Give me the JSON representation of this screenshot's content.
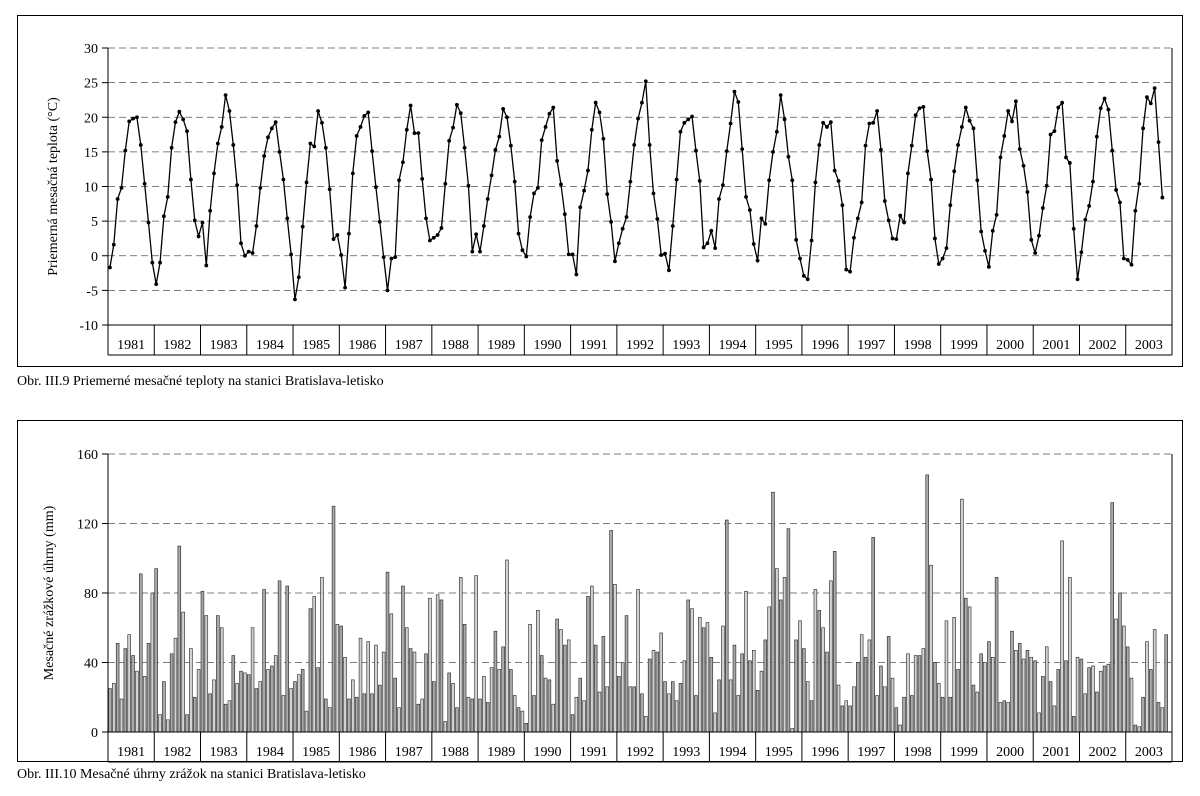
{
  "chart_data": [
    {
      "type": "line",
      "ylabel": "Priemerná mesačná teplota (°C)",
      "ylim": [
        -10,
        30
      ],
      "yticks": [
        -10,
        -5,
        0,
        5,
        10,
        15,
        20,
        25,
        30
      ],
      "grid": "horizontal dashed",
      "years": [
        "1981",
        "1982",
        "1983",
        "1984",
        "1985",
        "1986",
        "1987",
        "1988",
        "1989",
        "1990",
        "1991",
        "1992",
        "1993",
        "1994",
        "1995",
        "1996",
        "1997",
        "1998",
        "1999",
        "2000",
        "2001",
        "2002",
        "2003"
      ],
      "series": [
        {
          "values": [
            -1.7,
            1.6,
            8.2,
            9.8,
            15.2,
            19.4,
            19.8,
            20.0,
            16.0,
            10.4,
            4.8,
            -1.0,
            -4.1,
            -1.0,
            5.7,
            8.5,
            15.6,
            19.3,
            20.8,
            19.7,
            18.0,
            11.0,
            5.1,
            2.8,
            4.8,
            -1.4,
            6.5,
            11.9,
            16.2,
            18.6,
            23.2,
            20.9,
            16.0,
            10.2,
            1.8,
            0.0,
            0.6,
            0.4,
            4.3,
            9.8,
            14.4,
            17.1,
            18.4,
            19.3,
            15.0,
            11.0,
            5.4,
            0.2,
            -6.3,
            -3.1,
            4.2,
            10.6,
            16.2,
            15.8,
            20.9,
            19.2,
            15.6,
            9.6,
            2.4,
            3.0,
            0.1,
            -4.6,
            3.2,
            11.9,
            17.3,
            18.6,
            20.2,
            20.7,
            15.1,
            9.9,
            4.9,
            -0.2,
            -5.0,
            -0.4,
            -0.2,
            10.9,
            13.5,
            18.2,
            21.7,
            17.7,
            17.7,
            11.1,
            5.4,
            2.2,
            2.6,
            3.0,
            4.0,
            10.4,
            16.6,
            18.5,
            21.8,
            20.6,
            15.6,
            10.1,
            0.6,
            3.1,
            0.6,
            4.3,
            8.2,
            11.6,
            15.3,
            17.2,
            21.2,
            20.0,
            15.9,
            10.7,
            3.2,
            0.8,
            -0.1,
            5.6,
            9.0,
            9.8,
            16.7,
            18.6,
            20.5,
            21.4,
            13.7,
            10.3,
            6.0,
            0.2,
            0.2,
            -2.7,
            7.0,
            9.4,
            12.3,
            18.2,
            22.1,
            20.7,
            16.9,
            8.9,
            4.9,
            -0.8,
            1.8,
            3.9,
            5.6,
            10.7,
            16.0,
            19.8,
            22.1,
            25.2,
            16.0,
            9.0,
            5.3,
            0.1,
            0.3,
            -2.1,
            4.3,
            11.0,
            17.9,
            19.2,
            19.7,
            20.1,
            15.2,
            10.8,
            1.2,
            1.8,
            3.6,
            1.1,
            8.2,
            10.2,
            15.1,
            19.1,
            23.7,
            22.2,
            15.4,
            8.5,
            6.6,
            1.7,
            -0.7,
            5.4,
            4.6,
            10.9,
            15.0,
            17.9,
            23.2,
            19.7,
            14.3,
            10.9,
            2.3,
            -0.4,
            -2.9,
            -3.4,
            2.2,
            10.6,
            16.0,
            19.2,
            18.6,
            19.3,
            12.3,
            10.8,
            7.3,
            -2.0,
            -2.3,
            2.6,
            5.4,
            7.7,
            15.9,
            19.1,
            19.2,
            20.9,
            15.3,
            7.9,
            5.1,
            2.5,
            2.4,
            5.8,
            4.8,
            11.9,
            15.9,
            20.3,
            21.3,
            21.5,
            15.1,
            11.0,
            2.5,
            -1.2,
            -0.4,
            1.1,
            7.3,
            12.2,
            16.0,
            18.6,
            21.4,
            19.5,
            18.4,
            10.9,
            3.5,
            0.7,
            -1.6,
            3.6,
            5.9,
            14.2,
            17.3,
            20.9,
            19.4,
            22.3,
            15.4,
            13.0,
            9.2,
            2.3,
            0.4,
            2.9,
            6.9,
            10.1,
            17.5,
            18.0,
            21.4,
            22.1,
            14.2,
            13.4,
            3.9,
            -3.4,
            0.5,
            5.2,
            7.2,
            10.7,
            17.2,
            21.3,
            22.7,
            21.1,
            15.2,
            9.5,
            7.7,
            -0.4,
            -0.6,
            -1.3,
            6.5,
            10.4,
            18.4,
            22.9,
            22.0,
            24.2,
            16.4,
            8.4
          ]
        }
      ]
    },
    {
      "type": "bar",
      "ylabel": "Mesačné zrážkové úhrny (mm)",
      "ylim": [
        0,
        160
      ],
      "yticks": [
        0,
        40,
        80,
        120,
        160
      ],
      "grid": "horizontal dashed",
      "years": [
        "1981",
        "1982",
        "1983",
        "1984",
        "1985",
        "1986",
        "1987",
        "1988",
        "1989",
        "1990",
        "1991",
        "1992",
        "1993",
        "1994",
        "1995",
        "1996",
        "1997",
        "1998",
        "1999",
        "2000",
        "2001",
        "2002",
        "2003"
      ],
      "values": [
        25,
        28,
        51,
        19,
        48,
        56,
        44,
        35,
        91,
        32,
        51,
        80,
        94,
        10,
        29,
        7,
        45,
        54,
        107,
        69,
        10,
        48,
        20,
        36,
        81,
        67,
        22,
        30,
        67,
        60,
        16,
        18,
        44,
        28,
        35,
        34,
        33,
        60,
        25,
        29,
        82,
        36,
        38,
        44,
        87,
        21,
        84,
        25,
        29,
        33,
        36,
        12,
        71,
        78,
        37,
        89,
        19,
        14,
        130,
        62,
        61,
        43,
        19,
        30,
        20,
        54,
        22,
        52,
        22,
        50,
        27,
        46,
        92,
        68,
        31,
        14,
        84,
        60,
        48,
        46,
        16,
        19,
        45,
        77,
        29,
        79,
        76,
        6,
        34,
        28,
        14,
        89,
        62,
        20,
        19,
        90,
        19,
        32,
        17,
        37,
        58,
        36,
        49,
        99,
        36,
        21,
        14,
        12,
        5,
        62,
        21,
        70,
        44,
        31,
        30,
        16,
        65,
        59,
        50,
        53,
        10,
        20,
        31,
        18,
        78,
        84,
        50,
        23,
        55,
        26,
        116,
        85,
        32,
        40,
        67,
        26,
        26,
        82,
        22,
        9,
        42,
        47,
        46,
        57,
        29,
        22,
        29,
        18,
        28,
        41,
        76,
        71,
        21,
        66,
        60,
        63,
        43,
        11,
        30,
        61,
        122,
        30,
        50,
        21,
        45,
        81,
        41,
        47,
        24,
        35,
        53,
        72,
        138,
        94,
        76,
        89,
        117,
        2,
        53,
        64,
        48,
        29,
        18,
        82,
        70,
        60,
        46,
        87,
        104,
        27,
        15,
        18,
        15,
        26,
        40,
        56,
        43,
        53,
        112,
        21,
        38,
        26,
        55,
        31,
        14,
        4,
        20,
        45,
        21,
        44,
        44,
        48,
        148,
        96,
        40,
        28,
        20,
        64,
        20,
        66,
        36,
        134,
        77,
        72,
        27,
        23,
        45,
        40,
        52,
        43,
        89,
        17,
        18,
        17,
        58,
        47,
        51,
        42,
        47,
        43,
        41,
        11,
        32,
        49,
        29,
        15,
        36,
        110,
        41,
        89,
        9,
        43,
        42,
        22,
        37,
        38,
        23,
        35,
        38,
        39,
        132,
        65,
        80,
        61,
        49,
        31,
        4,
        3,
        20,
        52,
        36,
        59,
        17,
        14,
        56
      ]
    }
  ],
  "captions": {
    "fig1": "Obr. III.9  Priemerné mesačné teploty na stanici Bratislava-letisko",
    "fig2": "Obr. III.10  Mesačné úhrny zrážok na stanici Bratislava-letisko"
  }
}
